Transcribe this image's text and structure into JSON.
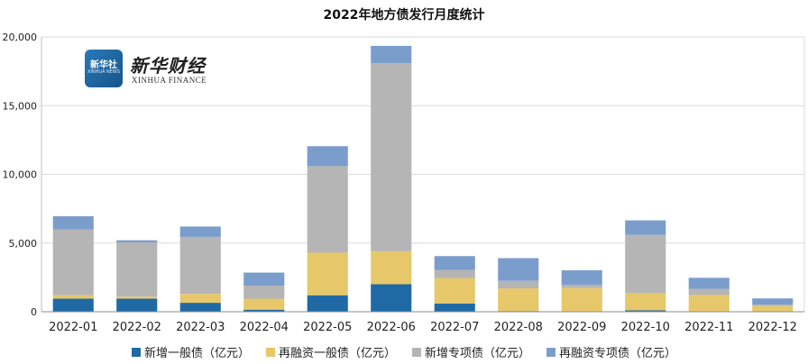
{
  "chart_data": {
    "type": "bar",
    "stacked": true,
    "title": "2022年地方债发行月度统计",
    "categories": [
      "2022-01",
      "2022-02",
      "2022-03",
      "2022-04",
      "2022-05",
      "2022-06",
      "2022-07",
      "2022-08",
      "2022-09",
      "2022-10",
      "2022-11",
      "2022-12"
    ],
    "ylim": [
      0,
      20000
    ],
    "yticks": [
      "0",
      "5,000",
      "10,000",
      "15,000",
      "20,000"
    ],
    "ytick_values": [
      0,
      5000,
      10000,
      15000,
      20000
    ],
    "grid": true,
    "legend_position": "bottom",
    "series": [
      {
        "name": "新增一般债（亿元）",
        "color": "#1f6aa5",
        "values": [
          950,
          950,
          650,
          150,
          1200,
          2000,
          600,
          50,
          20,
          100,
          20,
          20
        ]
      },
      {
        "name": "再融资一般债（亿元）",
        "color": "#e6c86a",
        "values": [
          250,
          150,
          650,
          800,
          3100,
          2400,
          1850,
          1650,
          1700,
          1250,
          1200,
          400
        ]
      },
      {
        "name": "新增专项债（亿元）",
        "color": "#b5b5b5",
        "values": [
          4800,
          3950,
          4150,
          950,
          6300,
          13700,
          600,
          550,
          250,
          4250,
          450,
          100
        ]
      },
      {
        "name": "再融资专项债（亿元）",
        "color": "#7b9dcc",
        "values": [
          950,
          150,
          750,
          950,
          1450,
          1250,
          1000,
          1650,
          1050,
          1050,
          800,
          450
        ]
      }
    ]
  },
  "logo": {
    "badge_text": "新华社",
    "badge_sub": "XINHUA NEWS",
    "brand_cn": "新华财经",
    "brand_en": "XINHUA FINANCE"
  }
}
